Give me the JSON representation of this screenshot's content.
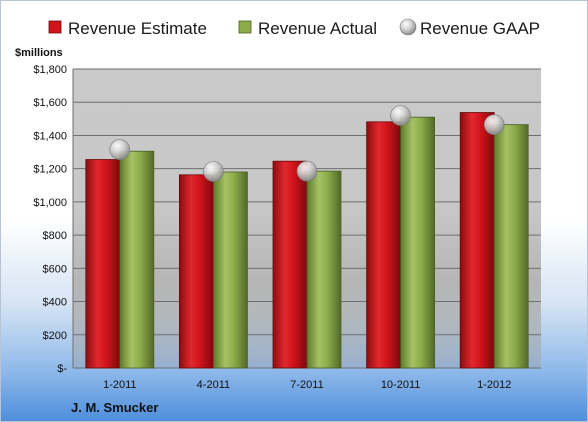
{
  "chart_data": {
    "type": "bar",
    "company": "J. M. Smucker",
    "ylabel": "$millions",
    "categories": [
      "1-2011",
      "4-2011",
      "7-2011",
      "10-2011",
      "1-2012"
    ],
    "ylim": [
      0,
      1800
    ],
    "yticks": [
      0,
      200,
      400,
      600,
      800,
      1000,
      1200,
      1400,
      1600,
      1800
    ],
    "ytick_labels": [
      "$-",
      "$200",
      "$400",
      "$600",
      "$800",
      "$1,000",
      "$1,200",
      "$1,400",
      "$1,600",
      "$1,800"
    ],
    "grid": true,
    "legend_position": "top",
    "series": [
      {
        "name": "Revenue Estimate",
        "type": "bar",
        "color": "#d1131b",
        "values": [
          1255,
          1163,
          1245,
          1482,
          1538
        ]
      },
      {
        "name": "Revenue Actual",
        "type": "bar",
        "color": "#8cac4a",
        "values": [
          1305,
          1180,
          1185,
          1510,
          1465
        ]
      },
      {
        "name": "Revenue GAAP",
        "type": "marker",
        "color": "#c0c0c0",
        "values": [
          1315,
          1183,
          1185,
          1520,
          1465
        ]
      }
    ]
  }
}
